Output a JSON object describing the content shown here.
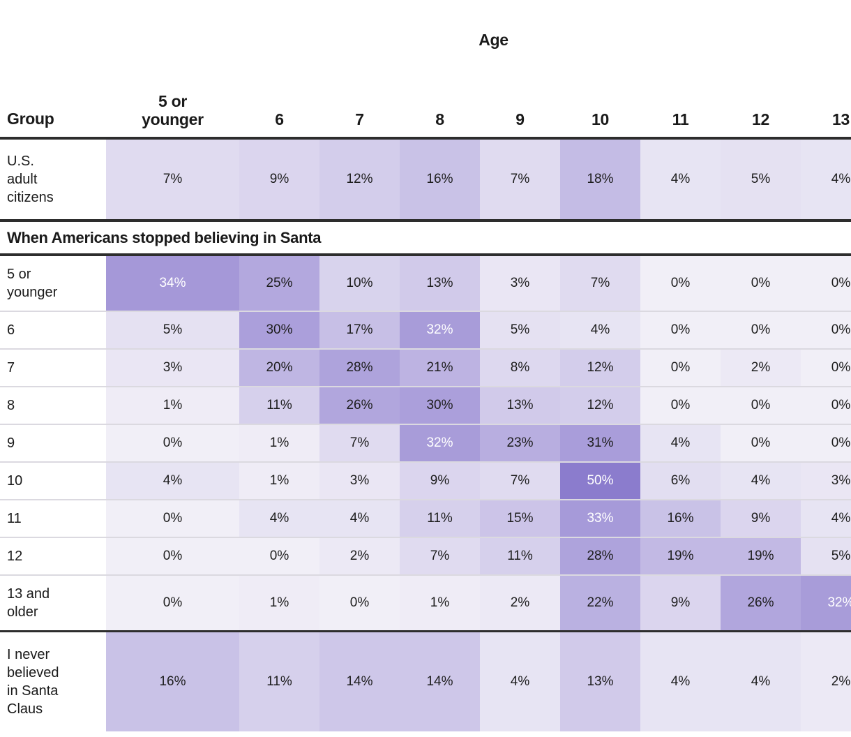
{
  "title_axis": "Age",
  "colors": {
    "background": "#ffffff",
    "rule_dark": "#2d2d2d",
    "row_divider": "#dbd9e0",
    "cell_text_dark": "#1d1d1d",
    "cell_text_light": "#ffffff",
    "label_text": "#1a1a1a"
  },
  "chart_data": {
    "type": "heatmap",
    "title": "Age",
    "corner_label": "Group",
    "section_title": "When Americans stopped believing in Santa",
    "columns": [
      "5 or younger",
      "6",
      "7",
      "8",
      "9",
      "10",
      "11",
      "12",
      "13"
    ],
    "value_suffix": "%",
    "value_domain": [
      0,
      50
    ],
    "adult_row": {
      "label": "U.S. adult citizens",
      "values_pct": [
        7,
        9,
        12,
        16,
        7,
        18,
        4,
        5,
        4
      ]
    },
    "rows": [
      {
        "label": "5 or younger",
        "values_pct": [
          34,
          25,
          10,
          13,
          3,
          7,
          0,
          0,
          0
        ]
      },
      {
        "label": "6",
        "values_pct": [
          5,
          30,
          17,
          32,
          5,
          4,
          0,
          0,
          0
        ]
      },
      {
        "label": "7",
        "values_pct": [
          3,
          20,
          28,
          21,
          8,
          12,
          0,
          2,
          0
        ]
      },
      {
        "label": "8",
        "values_pct": [
          1,
          11,
          26,
          30,
          13,
          12,
          0,
          0,
          0
        ]
      },
      {
        "label": "9",
        "values_pct": [
          0,
          1,
          7,
          32,
          23,
          31,
          4,
          0,
          0
        ]
      },
      {
        "label": "10",
        "values_pct": [
          4,
          1,
          3,
          9,
          7,
          50,
          6,
          4,
          3
        ]
      },
      {
        "label": "11",
        "values_pct": [
          0,
          4,
          4,
          11,
          15,
          33,
          16,
          9,
          4
        ]
      },
      {
        "label": "12",
        "values_pct": [
          0,
          0,
          2,
          7,
          11,
          28,
          19,
          19,
          5
        ]
      },
      {
        "label": "13 and older",
        "values_pct": [
          0,
          1,
          0,
          1,
          2,
          22,
          9,
          26,
          32
        ]
      },
      {
        "label": "I never believed in Santa Claus",
        "values_pct": [
          16,
          11,
          14,
          14,
          4,
          13,
          4,
          4,
          2
        ]
      }
    ],
    "color_scale": {
      "stops": [
        {
          "value": 0,
          "color": "#f1eff7"
        },
        {
          "value": 25,
          "color": "#b3a8de"
        },
        {
          "value": 50,
          "color": "#8b7ccd"
        }
      ],
      "white_text_threshold": 32
    },
    "layout": {
      "legend": "none",
      "grid": "row-dividers"
    }
  }
}
